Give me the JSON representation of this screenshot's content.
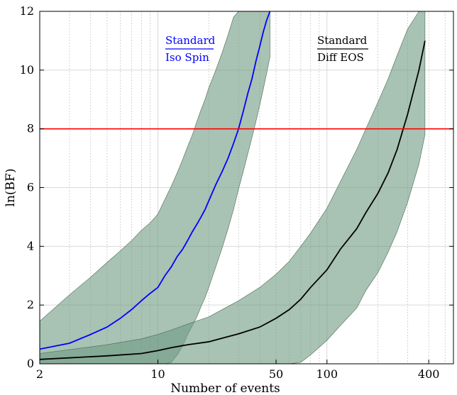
{
  "chart_data": {
    "type": "line",
    "xlabel": "Number of events",
    "ylabel": "ln(BF)",
    "xscale": "log",
    "xlim": [
      2,
      560
    ],
    "ylim": [
      0,
      12
    ],
    "xticks": [
      2,
      10,
      50,
      100,
      400
    ],
    "xtick_labels": [
      "2",
      "10",
      "50",
      "100",
      "400"
    ],
    "yticks": [
      0,
      2,
      4,
      6,
      8,
      10,
      12
    ],
    "ytick_labels": [
      "0",
      "2",
      "4",
      "6",
      "8",
      "10",
      "12"
    ],
    "grid": true,
    "threshold": {
      "y": 8,
      "color": "#ff0000"
    },
    "band_color": "#6e9a80",
    "series": [
      {
        "color": "#0000ff",
        "annotation": {
          "top": "Standard",
          "bottom": "Iso Spin"
        },
        "x": [
          2,
          3,
          4,
          5,
          6,
          7,
          8,
          9,
          10,
          11,
          12,
          13,
          14,
          15,
          16,
          17,
          18,
          19,
          20,
          22,
          24,
          26,
          28,
          30,
          32,
          34,
          36,
          38,
          40,
          42,
          44,
          46
        ],
        "y": [
          0.5,
          0.7,
          1.0,
          1.25,
          1.55,
          1.85,
          2.15,
          2.4,
          2.6,
          3.0,
          3.3,
          3.65,
          3.9,
          4.2,
          4.5,
          4.75,
          5.0,
          5.25,
          5.55,
          6.1,
          6.55,
          7.0,
          7.5,
          8.0,
          8.6,
          9.2,
          9.7,
          10.3,
          10.8,
          11.3,
          11.7,
          12.0
        ],
        "band_lower": [
          0,
          0,
          0,
          0,
          0,
          0,
          0,
          0,
          0,
          0,
          0.05,
          0.3,
          0.6,
          1.0,
          1.3,
          1.6,
          1.95,
          2.25,
          2.6,
          3.3,
          3.95,
          4.6,
          5.25,
          5.95,
          6.55,
          7.15,
          7.7,
          8.25,
          8.8,
          9.35,
          9.9,
          10.45
        ],
        "band_upper": [
          1.45,
          2.35,
          2.95,
          3.45,
          3.85,
          4.2,
          4.55,
          4.8,
          5.1,
          5.6,
          6.05,
          6.5,
          6.95,
          7.4,
          7.8,
          8.25,
          8.65,
          9.0,
          9.4,
          10.0,
          10.6,
          11.2,
          11.8,
          12.0,
          12.0,
          12.0,
          12.0,
          12.0,
          12.0,
          12.0,
          12.0,
          12.0
        ]
      },
      {
        "color": "#000000",
        "annotation": {
          "top": "Standard",
          "bottom": "Diff EOS"
        },
        "x": [
          2,
          5,
          8,
          10,
          12,
          15,
          20,
          25,
          30,
          40,
          50,
          60,
          70,
          80,
          100,
          120,
          150,
          170,
          200,
          230,
          260,
          300,
          350,
          380
        ],
        "y": [
          0.15,
          0.27,
          0.35,
          0.45,
          0.55,
          0.65,
          0.75,
          0.9,
          1.02,
          1.25,
          1.55,
          1.85,
          2.2,
          2.6,
          3.2,
          3.9,
          4.6,
          5.15,
          5.8,
          6.5,
          7.3,
          8.5,
          10.0,
          11.0
        ],
        "band_lower": [
          0,
          0,
          0,
          0,
          0,
          0,
          0,
          0,
          0,
          0,
          0,
          0,
          0.05,
          0.3,
          0.8,
          1.3,
          1.9,
          2.5,
          3.1,
          3.8,
          4.5,
          5.5,
          6.8,
          7.8
        ],
        "band_upper": [
          0.35,
          0.65,
          0.85,
          1.0,
          1.15,
          1.35,
          1.6,
          1.9,
          2.15,
          2.6,
          3.05,
          3.5,
          4.0,
          4.45,
          5.3,
          6.2,
          7.3,
          8.0,
          8.9,
          9.7,
          10.5,
          11.4,
          12.0,
          12.0
        ]
      }
    ]
  }
}
